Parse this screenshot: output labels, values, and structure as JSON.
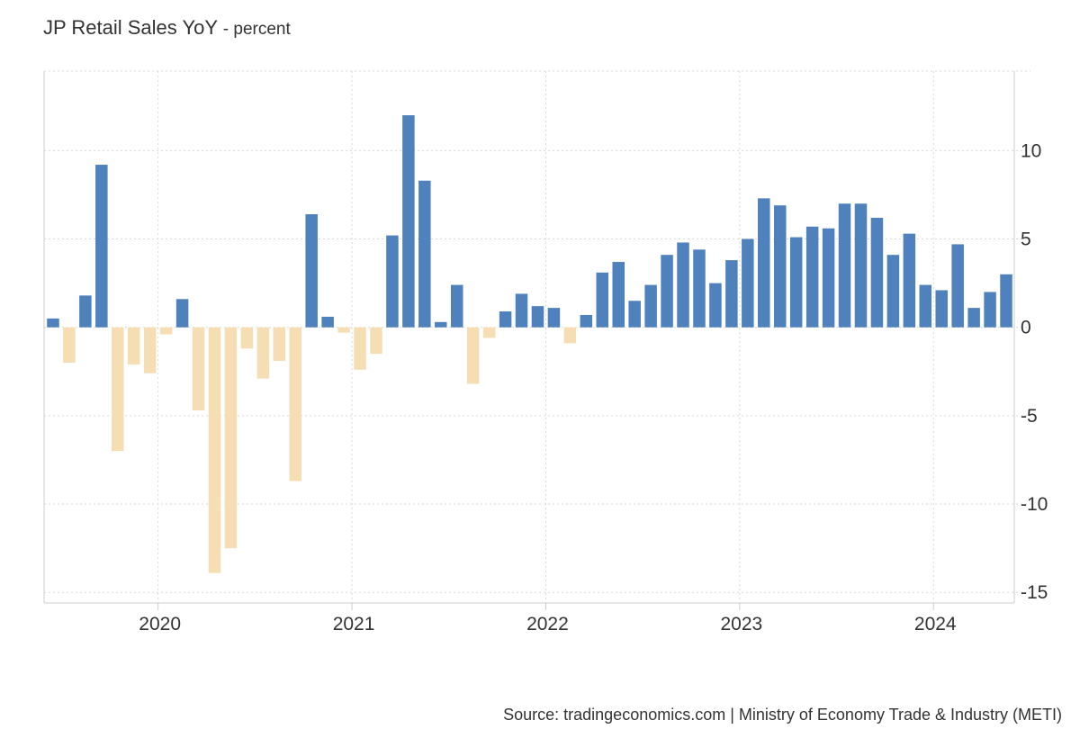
{
  "title": "JP Retail Sales YoY",
  "subtitle": "- percent",
  "source": "Source: tradingeconomics.com | Ministry of Economy Trade & Industry (METI)",
  "colors": {
    "positive": "#4f81bd",
    "negative": "#f5deb3",
    "grid": "#d9d9d9",
    "axis": "#cccccc",
    "text": "#333333"
  },
  "chart_data": {
    "type": "bar",
    "title": "JP Retail Sales YoY",
    "subtitle": "percent",
    "xlabel": "",
    "ylabel": "",
    "ylim": [
      -15.6,
      14.5
    ],
    "yticks": [
      10,
      5,
      0,
      -5,
      -10,
      -15
    ],
    "ytick_labels": [
      "10",
      "5",
      "0",
      "-5",
      "-10",
      "-15"
    ],
    "grid": true,
    "xtick_labels": [
      "2020",
      "2021",
      "2022",
      "2023",
      "2024"
    ],
    "categories": [
      "2019-06",
      "2019-07",
      "2019-08",
      "2019-09",
      "2019-10",
      "2019-11",
      "2019-12",
      "2020-01",
      "2020-02",
      "2020-03",
      "2020-04",
      "2020-05",
      "2020-06",
      "2020-07",
      "2020-08",
      "2020-09",
      "2020-10",
      "2020-11",
      "2020-12",
      "2021-01",
      "2021-02",
      "2021-03",
      "2021-04",
      "2021-05",
      "2021-06",
      "2021-07",
      "2021-08",
      "2021-09",
      "2021-10",
      "2021-11",
      "2021-12",
      "2022-01",
      "2022-02",
      "2022-03",
      "2022-04",
      "2022-05",
      "2022-06",
      "2022-07",
      "2022-08",
      "2022-09",
      "2022-10",
      "2022-11",
      "2022-12",
      "2023-01",
      "2023-02",
      "2023-03",
      "2023-04",
      "2023-05",
      "2023-06",
      "2023-07",
      "2023-08",
      "2023-09",
      "2023-10",
      "2023-11",
      "2023-12",
      "2024-01",
      "2024-02",
      "2024-03",
      "2024-04",
      "2024-05"
    ],
    "values": [
      0.5,
      -2.0,
      1.8,
      9.2,
      -7.0,
      -2.1,
      -2.6,
      -0.4,
      1.6,
      -4.7,
      -13.9,
      -12.5,
      -1.2,
      -2.9,
      -1.9,
      -8.7,
      6.4,
      0.6,
      -0.3,
      -2.4,
      -1.5,
      5.2,
      12.0,
      8.3,
      0.3,
      2.4,
      -3.2,
      -0.6,
      0.9,
      1.9,
      1.2,
      1.1,
      -0.9,
      0.7,
      3.1,
      3.7,
      1.5,
      2.4,
      4.1,
      4.8,
      4.4,
      2.5,
      3.8,
      5.0,
      7.3,
      6.9,
      5.1,
      5.7,
      5.6,
      7.0,
      7.0,
      6.2,
      4.1,
      5.3,
      2.4,
      2.1,
      4.7,
      1.1,
      2.0,
      3.0
    ]
  }
}
